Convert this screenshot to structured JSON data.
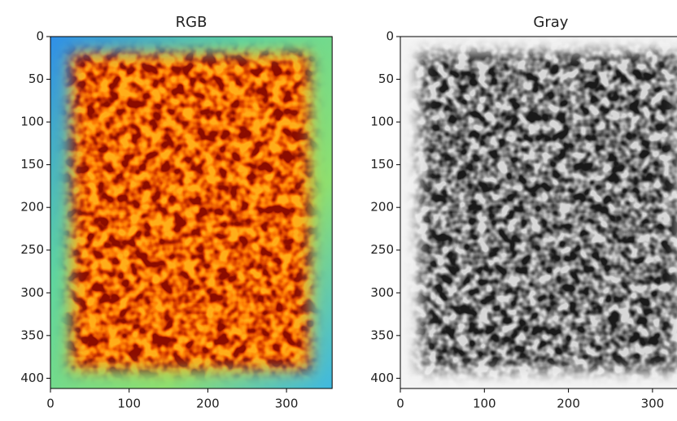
{
  "chart_data": [
    {
      "type": "image",
      "title": "RGB",
      "colormap": "jet",
      "xlim": [
        0,
        358
      ],
      "ylim": [
        412,
        0
      ],
      "xticks": [
        0,
        100,
        200,
        300
      ],
      "yticks": [
        0,
        50,
        100,
        150,
        200,
        250,
        300,
        350,
        400
      ]
    },
    {
      "type": "image",
      "title": "Gray",
      "colormap": "gray",
      "xlim": [
        0,
        358
      ],
      "ylim": [
        412,
        0
      ],
      "xticks": [
        0,
        100,
        200,
        300
      ],
      "yticks": [
        0,
        50,
        100,
        150,
        200,
        250,
        300,
        350,
        400
      ]
    }
  ]
}
